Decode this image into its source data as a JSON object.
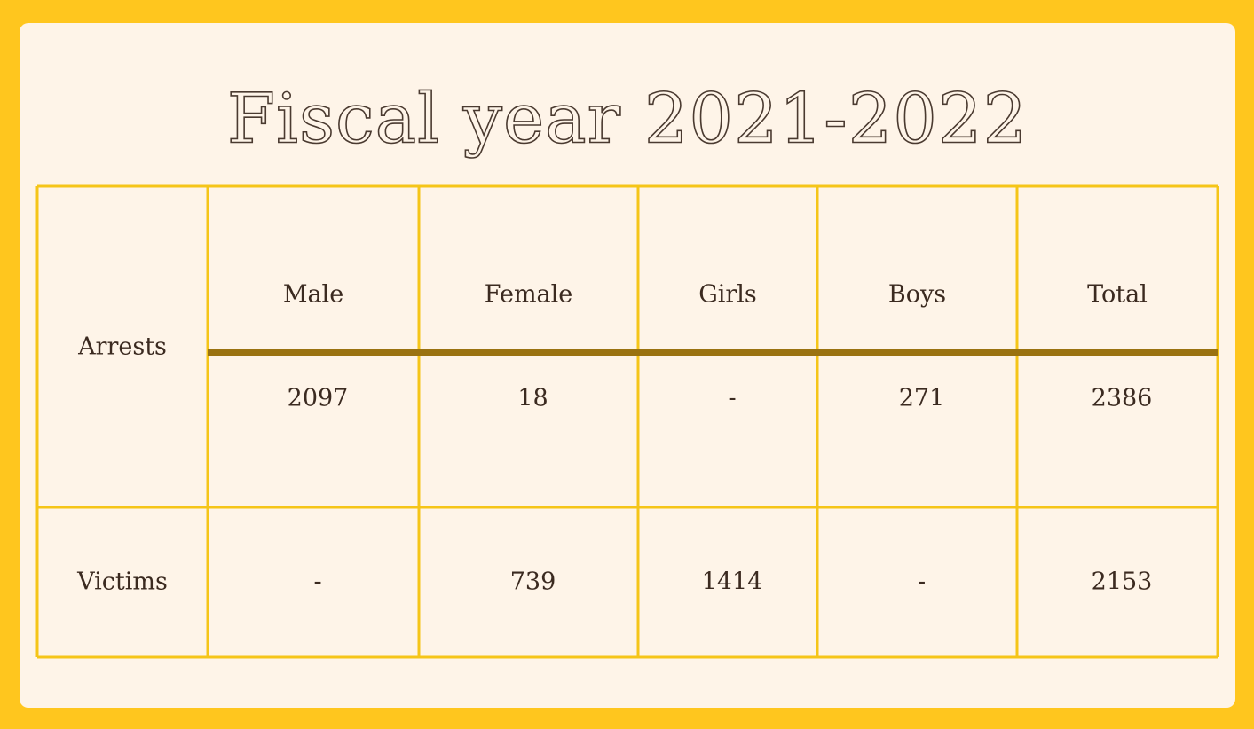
{
  "title": "Fiscal year 2021-2022",
  "table": {
    "columns": [
      "Male",
      "Female",
      "Girls",
      "Boys",
      "Total"
    ],
    "rows": [
      {
        "label": "Arrests",
        "values": [
          2097,
          18,
          "-",
          271,
          2386
        ]
      },
      {
        "label": "Victims",
        "values": [
          "-",
          739,
          1414,
          "-",
          2153
        ]
      }
    ]
  }
}
